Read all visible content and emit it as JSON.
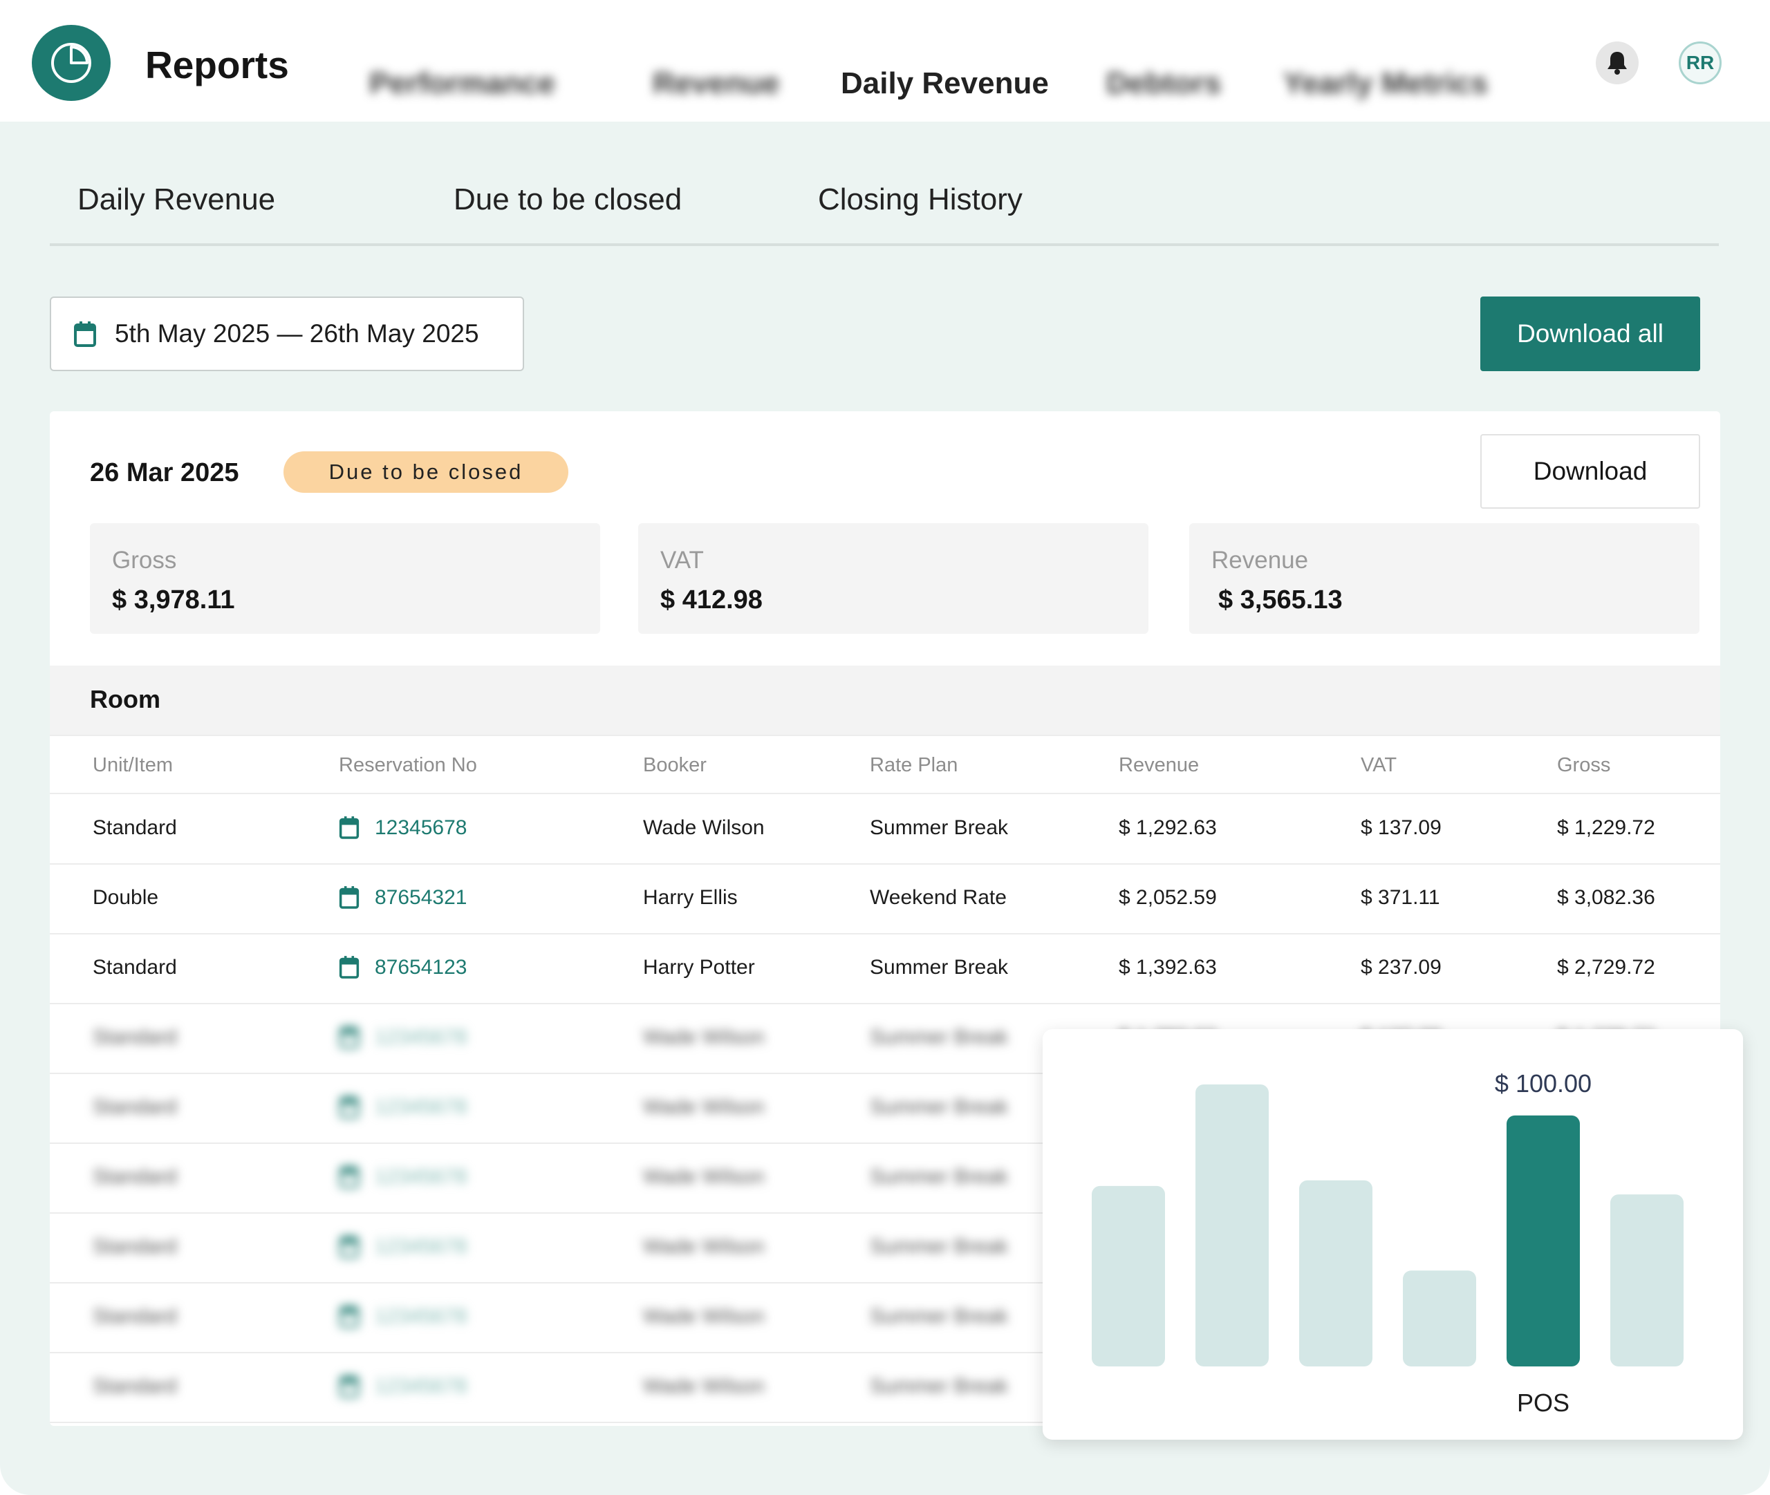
{
  "app": {
    "title": "Reports",
    "avatar_initials": "RR",
    "accent_color": "#1d7a70"
  },
  "nav": {
    "tabs": [
      {
        "label": "Performance",
        "blurred": true
      },
      {
        "label": "Revenue",
        "blurred": true
      },
      {
        "label": "Daily Revenue",
        "active": true
      },
      {
        "label": "Debtors",
        "blurred": true
      },
      {
        "label": "Yearly Metrics",
        "blurred": true
      }
    ]
  },
  "subtabs": [
    "Daily Revenue",
    "Due to be closed",
    "Closing History"
  ],
  "date_range": "5th May 2025 — 26th May 2025",
  "actions": {
    "download_all": "Download all",
    "download": "Download"
  },
  "report": {
    "date": "26 Mar 2025",
    "status": "Due to be closed",
    "status_color": "#fbd4a0",
    "metrics": [
      {
        "label": "Gross",
        "value": "$ 3,978.11"
      },
      {
        "label": "VAT",
        "value": "$ 412.98"
      },
      {
        "label": "Revenue",
        "value": "$ 3,565.13"
      }
    ],
    "section": "Room",
    "columns": [
      "Unit/Item",
      "Reservation No",
      "Booker",
      "Rate Plan",
      "Revenue",
      "VAT",
      "Gross"
    ],
    "rows": [
      [
        "Standard",
        "12345678",
        "Wade Wilson",
        "Summer Break",
        "$ 1,292.63",
        "$ 137.09",
        "$ 1,229.72"
      ],
      [
        "Double",
        "87654321",
        "Harry Ellis",
        "Weekend Rate",
        "$ 2,052.59",
        "$ 371.11",
        "$ 3,082.36"
      ],
      [
        "Standard",
        "87654123",
        "Harry Potter",
        "Summer Break",
        "$ 1,392.63",
        "$ 237.09",
        "$ 2,729.72"
      ]
    ],
    "blurred_rows": [
      [
        "Standard",
        "12345678",
        "Wade Wilson",
        "Summer Break",
        "$ 1,292.63",
        "$ 137.09",
        "$ 1,229.72"
      ],
      [
        "Standard",
        "12345678",
        "Wade Wilson",
        "Summer Break",
        "",
        "",
        ""
      ],
      [
        "Standard",
        "12345678",
        "Wade Wilson",
        "Summer Break",
        "",
        "",
        ""
      ],
      [
        "Standard",
        "12345678",
        "Wade Wilson",
        "Summer Break",
        "",
        "",
        ""
      ],
      [
        "Standard",
        "12345678",
        "Wade Wilson",
        "Summer Break",
        "",
        "",
        ""
      ],
      [
        "Standard",
        "12345678",
        "Wade Wilson",
        "Summer Break",
        "",
        "",
        ""
      ]
    ]
  },
  "chart_data": {
    "type": "bar",
    "values": [
      0.64,
      1.0,
      0.66,
      0.34,
      0.89,
      0.61
    ],
    "highlight_index": 4,
    "highlight_label": "$ 100.00",
    "highlight_category": "POS",
    "color": "#d4e7e6",
    "highlight_color": "#1f8278"
  }
}
